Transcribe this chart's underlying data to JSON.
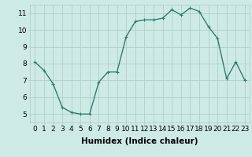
{
  "x": [
    0,
    1,
    2,
    3,
    4,
    5,
    6,
    7,
    8,
    9,
    10,
    11,
    12,
    13,
    14,
    15,
    16,
    17,
    18,
    19,
    20,
    21,
    22,
    23
  ],
  "y": [
    8.1,
    7.6,
    6.8,
    5.4,
    5.1,
    5.0,
    5.0,
    6.9,
    7.5,
    7.5,
    9.6,
    10.5,
    10.6,
    10.6,
    10.7,
    11.2,
    10.9,
    11.3,
    11.1,
    10.2,
    9.5,
    7.1,
    8.1,
    7.0
  ],
  "line_color": "#2d7d6e",
  "marker": "+",
  "marker_size": 3,
  "bg_color": "#ceeae7",
  "grid_color": "#b0cfc9",
  "xlabel": "Humidex (Indice chaleur)",
  "ylim": [
    4.5,
    11.5
  ],
  "xlim": [
    -0.5,
    23.5
  ],
  "yticks": [
    5,
    6,
    7,
    8,
    9,
    10,
    11
  ],
  "xticks": [
    0,
    1,
    2,
    3,
    4,
    5,
    6,
    7,
    8,
    9,
    10,
    11,
    12,
    13,
    14,
    15,
    16,
    17,
    18,
    19,
    20,
    21,
    22,
    23
  ],
  "xlabel_fontsize": 7.5,
  "tick_fontsize": 6.5,
  "line_width": 1.0
}
